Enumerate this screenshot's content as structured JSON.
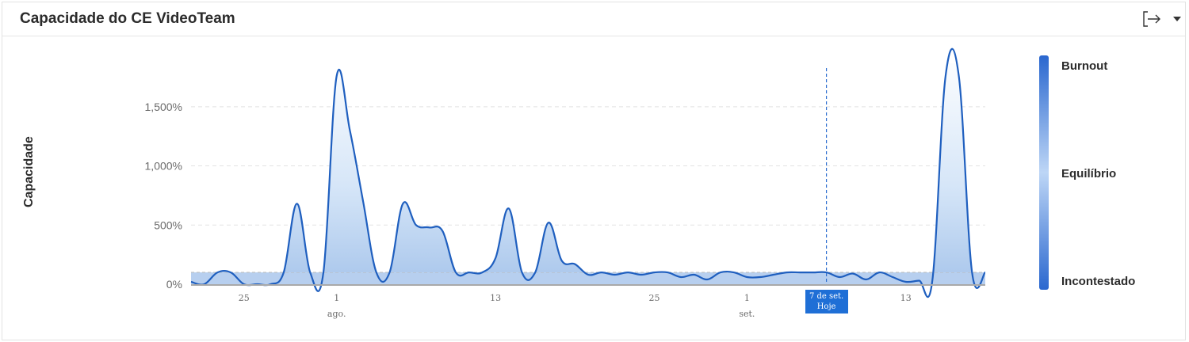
{
  "title": "Capacidade do CE VideoTeam",
  "icons": {
    "export": "export-icon",
    "menu": "chevron-down-icon"
  },
  "colors": {
    "line": "#1f5fbf",
    "fill_light": "#dce9f8",
    "fill_dark": "#a8c6ec",
    "baseline": "#a9a9a9",
    "grid": "#e2e2e2",
    "today": "#2f6fd0",
    "legend_top": "#2a6ad0",
    "legend_mid": "#b9d4f5"
  },
  "legend": {
    "top": "Burnout",
    "middle": "Equilíbrio",
    "bottom": "Incontestado"
  },
  "today_marker": {
    "line1": "7 de set.",
    "line2": "Hoje"
  },
  "chart_data": {
    "type": "area",
    "ylabel": "Capacidade",
    "ylim": [
      0,
      1800
    ],
    "yticks": [
      0,
      500,
      1000,
      1500
    ],
    "ytick_labels": [
      "0%",
      "500%",
      "1,000%",
      "1,500%"
    ],
    "equilibrium": 100,
    "xlim": [
      "Jul 21",
      "Sep 19"
    ],
    "xticks": [
      {
        "x": "Jul 25",
        "label": "25",
        "sub": ""
      },
      {
        "x": "Aug 1",
        "label": "1",
        "sub": "ago."
      },
      {
        "x": "Aug 13",
        "label": "13",
        "sub": ""
      },
      {
        "x": "Aug 25",
        "label": "25",
        "sub": ""
      },
      {
        "x": "Sep 1",
        "label": "1",
        "sub": "set."
      },
      {
        "x": "Sep 13",
        "label": "13",
        "sub": ""
      }
    ],
    "today": "Sep 7",
    "grid": true,
    "series": [
      {
        "x": [
          "Jul 21",
          "Jul 22",
          "Jul 23",
          "Jul 24",
          "Jul 25",
          "Jul 26",
          "Jul 27",
          "Jul 28",
          "Jul 29",
          "Jul 30",
          "Jul 31",
          "Aug 1",
          "Aug 2",
          "Aug 3",
          "Aug 4",
          "Aug 5",
          "Aug 6",
          "Aug 7",
          "Aug 8",
          "Aug 9",
          "Aug 10",
          "Aug 11",
          "Aug 12",
          "Aug 13",
          "Aug 14",
          "Aug 15",
          "Aug 16",
          "Aug 17",
          "Aug 18",
          "Aug 19",
          "Aug 20",
          "Aug 21",
          "Aug 22",
          "Aug 23",
          "Aug 24",
          "Aug 25",
          "Aug 26",
          "Aug 27",
          "Aug 28",
          "Aug 29",
          "Aug 30",
          "Aug 31",
          "Sep 1",
          "Sep 2",
          "Sep 3",
          "Sep 4",
          "Sep 5",
          "Sep 6",
          "Sep 7",
          "Sep 8",
          "Sep 9",
          "Sep 10",
          "Sep 11",
          "Sep 12",
          "Sep 13",
          "Sep 14",
          "Sep 15",
          "Sep 16",
          "Sep 17",
          "Sep 18",
          "Sep 19"
        ],
        "y": [
          20,
          0,
          100,
          100,
          0,
          0,
          0,
          100,
          680,
          100,
          100,
          1760,
          1300,
          700,
          100,
          100,
          680,
          500,
          480,
          450,
          100,
          100,
          100,
          220,
          640,
          100,
          100,
          520,
          200,
          170,
          80,
          100,
          80,
          100,
          80,
          100,
          100,
          60,
          80,
          40,
          100,
          100,
          60,
          60,
          80,
          100,
          100,
          100,
          100,
          60,
          90,
          40,
          100,
          60,
          20,
          30,
          30,
          1760,
          1760,
          100,
          100
        ]
      }
    ]
  }
}
